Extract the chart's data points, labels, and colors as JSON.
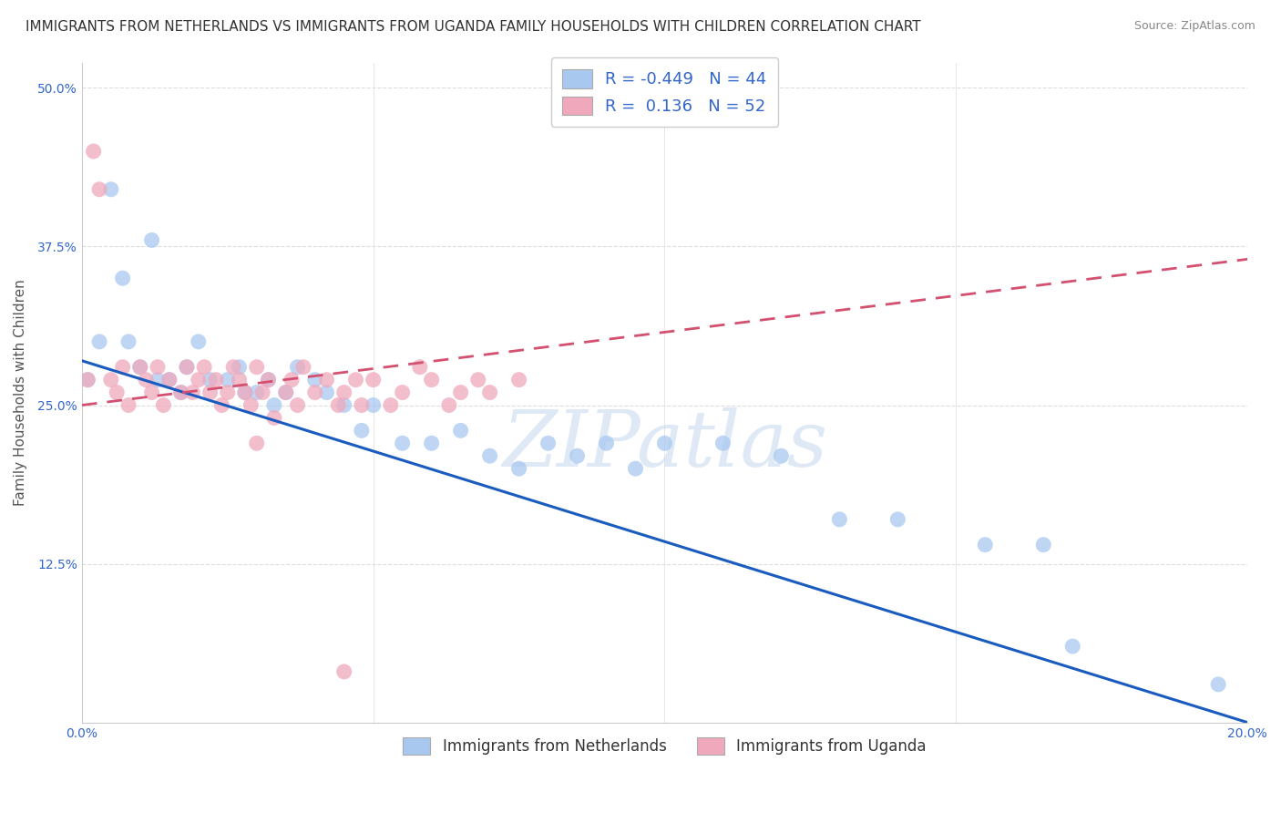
{
  "title": "IMMIGRANTS FROM NETHERLANDS VS IMMIGRANTS FROM UGANDA FAMILY HOUSEHOLDS WITH CHILDREN CORRELATION CHART",
  "source": "Source: ZipAtlas.com",
  "ylabel": "Family Households with Children",
  "xlim": [
    0.0,
    0.2
  ],
  "ylim": [
    0.0,
    0.52
  ],
  "x_ticks": [
    0.0,
    0.05,
    0.1,
    0.15,
    0.2
  ],
  "x_tick_labels": [
    "0.0%",
    "",
    "",
    "",
    "20.0%"
  ],
  "y_ticks": [
    0.0,
    0.125,
    0.25,
    0.375,
    0.5
  ],
  "y_tick_labels": [
    "",
    "12.5%",
    "25.0%",
    "37.5%",
    "50.0%"
  ],
  "netherlands_color": "#a8c8f0",
  "uganda_color": "#f0a8bc",
  "netherlands_line_color": "#1a5bbf",
  "uganda_line_color": "#d45070",
  "netherlands_R": -0.449,
  "netherlands_N": 44,
  "uganda_R": 0.136,
  "uganda_N": 52,
  "watermark": "ZIPatlas",
  "nl_x": [
    0.001,
    0.003,
    0.005,
    0.007,
    0.008,
    0.01,
    0.012,
    0.013,
    0.015,
    0.017,
    0.018,
    0.02,
    0.022,
    0.025,
    0.027,
    0.028,
    0.03,
    0.032,
    0.033,
    0.035,
    0.037,
    0.04,
    0.042,
    0.045,
    0.048,
    0.05,
    0.055,
    0.06,
    0.065,
    0.07,
    0.075,
    0.08,
    0.085,
    0.09,
    0.095,
    0.1,
    0.11,
    0.12,
    0.13,
    0.14,
    0.155,
    0.165,
    0.17,
    0.195
  ],
  "nl_y": [
    0.27,
    0.3,
    0.42,
    0.35,
    0.3,
    0.28,
    0.38,
    0.27,
    0.27,
    0.26,
    0.28,
    0.3,
    0.27,
    0.27,
    0.28,
    0.26,
    0.26,
    0.27,
    0.25,
    0.26,
    0.28,
    0.27,
    0.26,
    0.25,
    0.23,
    0.25,
    0.22,
    0.22,
    0.23,
    0.21,
    0.2,
    0.22,
    0.21,
    0.22,
    0.2,
    0.22,
    0.22,
    0.21,
    0.16,
    0.16,
    0.14,
    0.14,
    0.06,
    0.03
  ],
  "ug_x": [
    0.001,
    0.002,
    0.003,
    0.005,
    0.006,
    0.007,
    0.008,
    0.01,
    0.011,
    0.012,
    0.013,
    0.014,
    0.015,
    0.017,
    0.018,
    0.019,
    0.02,
    0.021,
    0.022,
    0.023,
    0.024,
    0.025,
    0.026,
    0.027,
    0.028,
    0.029,
    0.03,
    0.031,
    0.032,
    0.033,
    0.035,
    0.036,
    0.037,
    0.038,
    0.04,
    0.042,
    0.044,
    0.045,
    0.047,
    0.048,
    0.05,
    0.053,
    0.055,
    0.058,
    0.06,
    0.063,
    0.065,
    0.068,
    0.07,
    0.075,
    0.03,
    0.045
  ],
  "ug_y": [
    0.27,
    0.45,
    0.42,
    0.27,
    0.26,
    0.28,
    0.25,
    0.28,
    0.27,
    0.26,
    0.28,
    0.25,
    0.27,
    0.26,
    0.28,
    0.26,
    0.27,
    0.28,
    0.26,
    0.27,
    0.25,
    0.26,
    0.28,
    0.27,
    0.26,
    0.25,
    0.28,
    0.26,
    0.27,
    0.24,
    0.26,
    0.27,
    0.25,
    0.28,
    0.26,
    0.27,
    0.25,
    0.26,
    0.27,
    0.25,
    0.27,
    0.25,
    0.26,
    0.28,
    0.27,
    0.25,
    0.26,
    0.27,
    0.26,
    0.27,
    0.22,
    0.04
  ],
  "nl_trend_x": [
    0.0,
    0.2
  ],
  "nl_trend_y": [
    0.285,
    0.0
  ],
  "ug_trend_x": [
    0.0,
    0.2
  ],
  "ug_trend_y": [
    0.25,
    0.365
  ],
  "background_color": "#ffffff",
  "grid_color": "#dddddd",
  "title_fontsize": 11,
  "axis_label_fontsize": 11,
  "tick_fontsize": 10,
  "legend_fontsize": 13
}
